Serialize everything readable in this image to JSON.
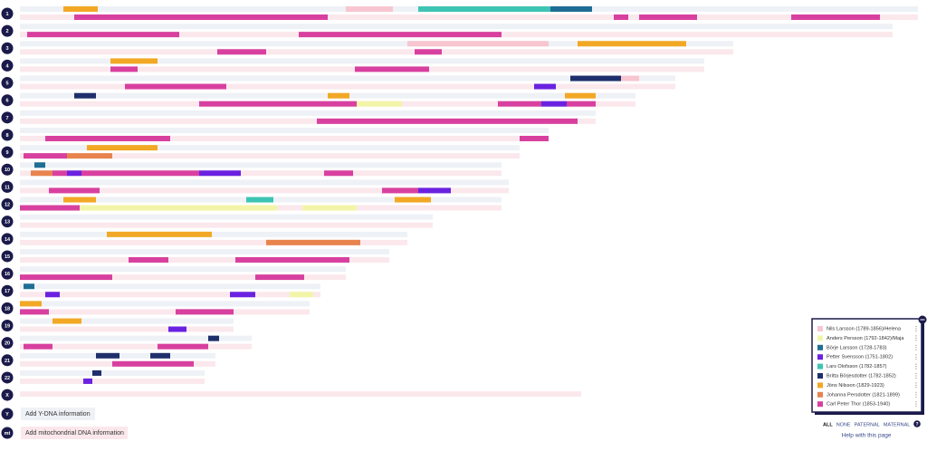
{
  "chromosomes": [
    {
      "label": "1",
      "length": 248,
      "segments": [
        [
          6,
          0,
          12,
          21.5
        ],
        [
          0,
          0,
          90,
          103
        ],
        [
          4,
          0,
          110,
          146.5
        ],
        [
          2,
          0,
          146.5,
          158
        ],
        [
          8,
          1,
          15,
          85
        ],
        [
          8,
          1,
          164,
          168
        ],
        [
          8,
          1,
          171,
          187
        ],
        [
          8,
          1,
          213,
          237.5
        ]
      ]
    },
    {
      "label": "2",
      "length": 241,
      "segments": [
        [
          8,
          1,
          2,
          44
        ],
        [
          8,
          1,
          77,
          133
        ]
      ]
    },
    {
      "label": "3",
      "length": 197,
      "segments": [
        [
          0,
          0,
          107,
          146
        ],
        [
          6,
          0,
          154,
          184
        ],
        [
          8,
          1,
          54.5,
          68
        ],
        [
          8,
          1,
          109,
          116.5
        ]
      ]
    },
    {
      "label": "4",
      "length": 189,
      "segments": [
        [
          6,
          0,
          25,
          38
        ],
        [
          8,
          1,
          25,
          32.5
        ],
        [
          8,
          1,
          92.5,
          113
        ]
      ]
    },
    {
      "label": "5",
      "length": 181,
      "segments": [
        [
          5,
          0,
          152,
          166
        ],
        [
          0,
          0,
          166,
          171
        ],
        [
          8,
          1,
          29,
          57
        ],
        [
          3,
          1,
          142,
          148
        ]
      ]
    },
    {
      "label": "6",
      "length": 170,
      "segments": [
        [
          5,
          0,
          15,
          21
        ],
        [
          6,
          0,
          85,
          91
        ],
        [
          6,
          0,
          150.5,
          159
        ],
        [
          8,
          1,
          49.5,
          93
        ],
        [
          1,
          1,
          93,
          105.5
        ],
        [
          8,
          1,
          132,
          144
        ],
        [
          3,
          1,
          144,
          151
        ],
        [
          8,
          1,
          151,
          159
        ]
      ]
    },
    {
      "label": "7",
      "length": 159,
      "segments": [
        [
          8,
          1,
          82,
          154
        ]
      ]
    },
    {
      "label": "8",
      "length": 146,
      "segments": [
        [
          8,
          1,
          7,
          41.5
        ],
        [
          8,
          1,
          138,
          146
        ]
      ]
    },
    {
      "label": "9",
      "length": 138,
      "segments": [
        [
          6,
          0,
          18.5,
          38
        ],
        [
          8,
          1,
          1,
          13
        ],
        [
          7,
          1,
          13,
          25.5
        ]
      ]
    },
    {
      "label": "10",
      "length": 133,
      "segments": [
        [
          2,
          0,
          4,
          7
        ],
        [
          7,
          1,
          3,
          9
        ],
        [
          8,
          1,
          9,
          13
        ],
        [
          3,
          1,
          13,
          17
        ],
        [
          8,
          1,
          17,
          49.5
        ],
        [
          3,
          1,
          49.5,
          61
        ],
        [
          8,
          1,
          84,
          92
        ]
      ]
    },
    {
      "label": "11",
      "length": 135,
      "segments": [
        [
          8,
          1,
          8,
          22
        ],
        [
          8,
          1,
          100,
          110
        ],
        [
          3,
          1,
          110,
          119
        ]
      ]
    },
    {
      "label": "12",
      "length": 133,
      "segments": [
        [
          6,
          0,
          12,
          21
        ],
        [
          4,
          0,
          62.5,
          70
        ],
        [
          6,
          0,
          103.5,
          113.5
        ],
        [
          8,
          1,
          0,
          16.5
        ],
        [
          1,
          1,
          16.5,
          71
        ],
        [
          1,
          1,
          78,
          93
        ]
      ]
    },
    {
      "label": "13",
      "length": 114,
      "segments": []
    },
    {
      "label": "14",
      "length": 107,
      "segments": [
        [
          6,
          0,
          24,
          53
        ],
        [
          7,
          1,
          68,
          94
        ]
      ]
    },
    {
      "label": "15",
      "length": 102,
      "segments": [
        [
          8,
          1,
          30,
          41
        ],
        [
          8,
          1,
          59.5,
          91
        ]
      ]
    },
    {
      "label": "16",
      "length": 90,
      "segments": [
        [
          8,
          1,
          0,
          25.5
        ],
        [
          8,
          1,
          65,
          78.5
        ]
      ]
    },
    {
      "label": "17",
      "length": 83,
      "segments": [
        [
          2,
          0,
          1,
          4
        ],
        [
          3,
          1,
          7,
          11
        ],
        [
          3,
          1,
          58,
          65
        ],
        [
          1,
          1,
          74.5,
          81
        ]
      ]
    },
    {
      "label": "18",
      "length": 80,
      "segments": [
        [
          6,
          0,
          0,
          6
        ],
        [
          8,
          1,
          0,
          8
        ],
        [
          8,
          1,
          43,
          59
        ]
      ]
    },
    {
      "label": "19",
      "length": 59,
      "segments": [
        [
          6,
          0,
          9,
          17
        ],
        [
          3,
          1,
          41,
          46
        ]
      ]
    },
    {
      "label": "20",
      "length": 64,
      "segments": [
        [
          5,
          0,
          52,
          55
        ],
        [
          8,
          1,
          1,
          9
        ],
        [
          8,
          1,
          38,
          52
        ]
      ]
    },
    {
      "label": "21",
      "length": 54,
      "segments": [
        [
          5,
          0,
          21,
          27.5
        ],
        [
          5,
          0,
          36,
          41.5
        ],
        [
          8,
          1,
          25.5,
          48
        ]
      ]
    },
    {
      "label": "22",
      "length": 51,
      "segments": [
        [
          5,
          0,
          20,
          22.5
        ],
        [
          3,
          1,
          17.5,
          20
        ]
      ]
    }
  ],
  "x_chromosome": {
    "label": "X",
    "length": 155
  },
  "y_dna": {
    "label": "Y",
    "button": "Add Y-DNA information"
  },
  "mt_dna": {
    "label": "mt",
    "button": "Add mitochondrial DNA information"
  },
  "legend": [
    {
      "name": "Nils Larsson (1789-1856)/Helena",
      "color": "#f7c6d0"
    },
    {
      "name": "Anders Persson (1792-1842)/Maja",
      "color": "#f2f5a8"
    },
    {
      "name": "Börje Larsson (1728-1783)",
      "color": "#1f6e96"
    },
    {
      "name": "Petter Svensson (1751-1802)",
      "color": "#6a22e0"
    },
    {
      "name": "Lars Olofsson (1782-1857)",
      "color": "#3ec4b2"
    },
    {
      "name": "Britta Börjesdotter (1782-1852)",
      "color": "#1f2f6b"
    },
    {
      "name": "Jöns Nilsson (1829-1923)",
      "color": "#f2a825"
    },
    {
      "name": "Johanna Persdotter (1821-1899)",
      "color": "#e8834e"
    },
    {
      "name": "Carl Peter Thor (1853-1940)",
      "color": "#d8409f"
    }
  ],
  "filters": [
    "ALL",
    "NONE",
    "PATERNAL",
    "MATERNAL"
  ],
  "help_icon": "?",
  "help": "Help with this page"
}
